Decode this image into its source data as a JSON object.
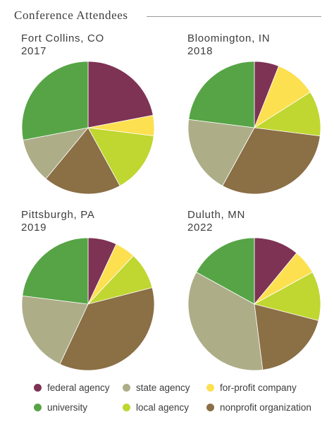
{
  "header": {
    "title": "Conference Attendees"
  },
  "categories": [
    {
      "key": "federal",
      "label": "federal agency",
      "color": "#7e3254"
    },
    {
      "key": "state",
      "label": "state agency",
      "color": "#adad88"
    },
    {
      "key": "forprofit",
      "label": "for-profit company",
      "color": "#fce050"
    },
    {
      "key": "university",
      "label": "university",
      "color": "#56a446"
    },
    {
      "key": "local",
      "label": "local agency",
      "color": "#c0d631"
    },
    {
      "key": "nonprofit",
      "label": "nonprofit organization",
      "color": "#8b6f45"
    }
  ],
  "panels": [
    {
      "city": "Fort Collins, CO",
      "year": "2017"
    },
    {
      "city": "Bloomington, IN",
      "year": "2018"
    },
    {
      "city": "Pittsburgh, PA",
      "year": "2019"
    },
    {
      "city": "Duluth, MN",
      "year": "2022"
    }
  ],
  "chart_data": [
    {
      "type": "pie",
      "title": "Fort Collins, CO 2017",
      "categories": [
        "federal agency",
        "for-profit company",
        "local agency",
        "nonprofit organization",
        "state agency",
        "university"
      ],
      "values": [
        22,
        5,
        15,
        19,
        11,
        28
      ],
      "unit": "percent"
    },
    {
      "type": "pie",
      "title": "Bloomington, IN 2018",
      "categories": [
        "federal agency",
        "for-profit company",
        "local agency",
        "nonprofit organization",
        "state agency",
        "university"
      ],
      "values": [
        6,
        10,
        11,
        31,
        19,
        23
      ],
      "unit": "percent"
    },
    {
      "type": "pie",
      "title": "Pittsburgh, PA 2019",
      "categories": [
        "federal agency",
        "for-profit company",
        "local agency",
        "nonprofit organization",
        "state agency",
        "university"
      ],
      "values": [
        7,
        5,
        9,
        36,
        20,
        23
      ],
      "unit": "percent"
    },
    {
      "type": "pie",
      "title": "Duluth, MN 2022",
      "categories": [
        "federal agency",
        "for-profit company",
        "local agency",
        "nonprofit organization",
        "state agency",
        "university"
      ],
      "values": [
        11,
        6,
        12,
        19,
        35,
        17
      ],
      "unit": "percent"
    }
  ]
}
